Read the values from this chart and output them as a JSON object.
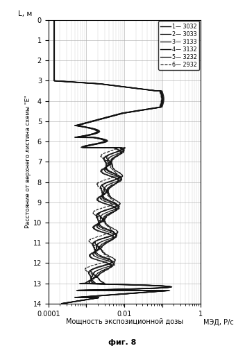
{
  "xlabel": "Мощность экспозиционной дозы",
  "xlabel2": "МЭД, Р/с",
  "ylabel": "Расстояние от верхнего листина схемы \"Е\"",
  "ylabel2": "L, м",
  "fig_label": "фиг. 8",
  "background_color": "#ffffff",
  "plot_bg_color": "#ffffff",
  "grid_color": "#aaaaaa",
  "legend_labels": [
    "1— 3032",
    "2— 3033",
    "3— 3133",
    "4— 3132",
    "5— 3232",
    "6— 2932"
  ],
  "channel_offsets_log": [
    0.0,
    0.06,
    0.04,
    -0.04,
    0.1,
    -0.07
  ]
}
